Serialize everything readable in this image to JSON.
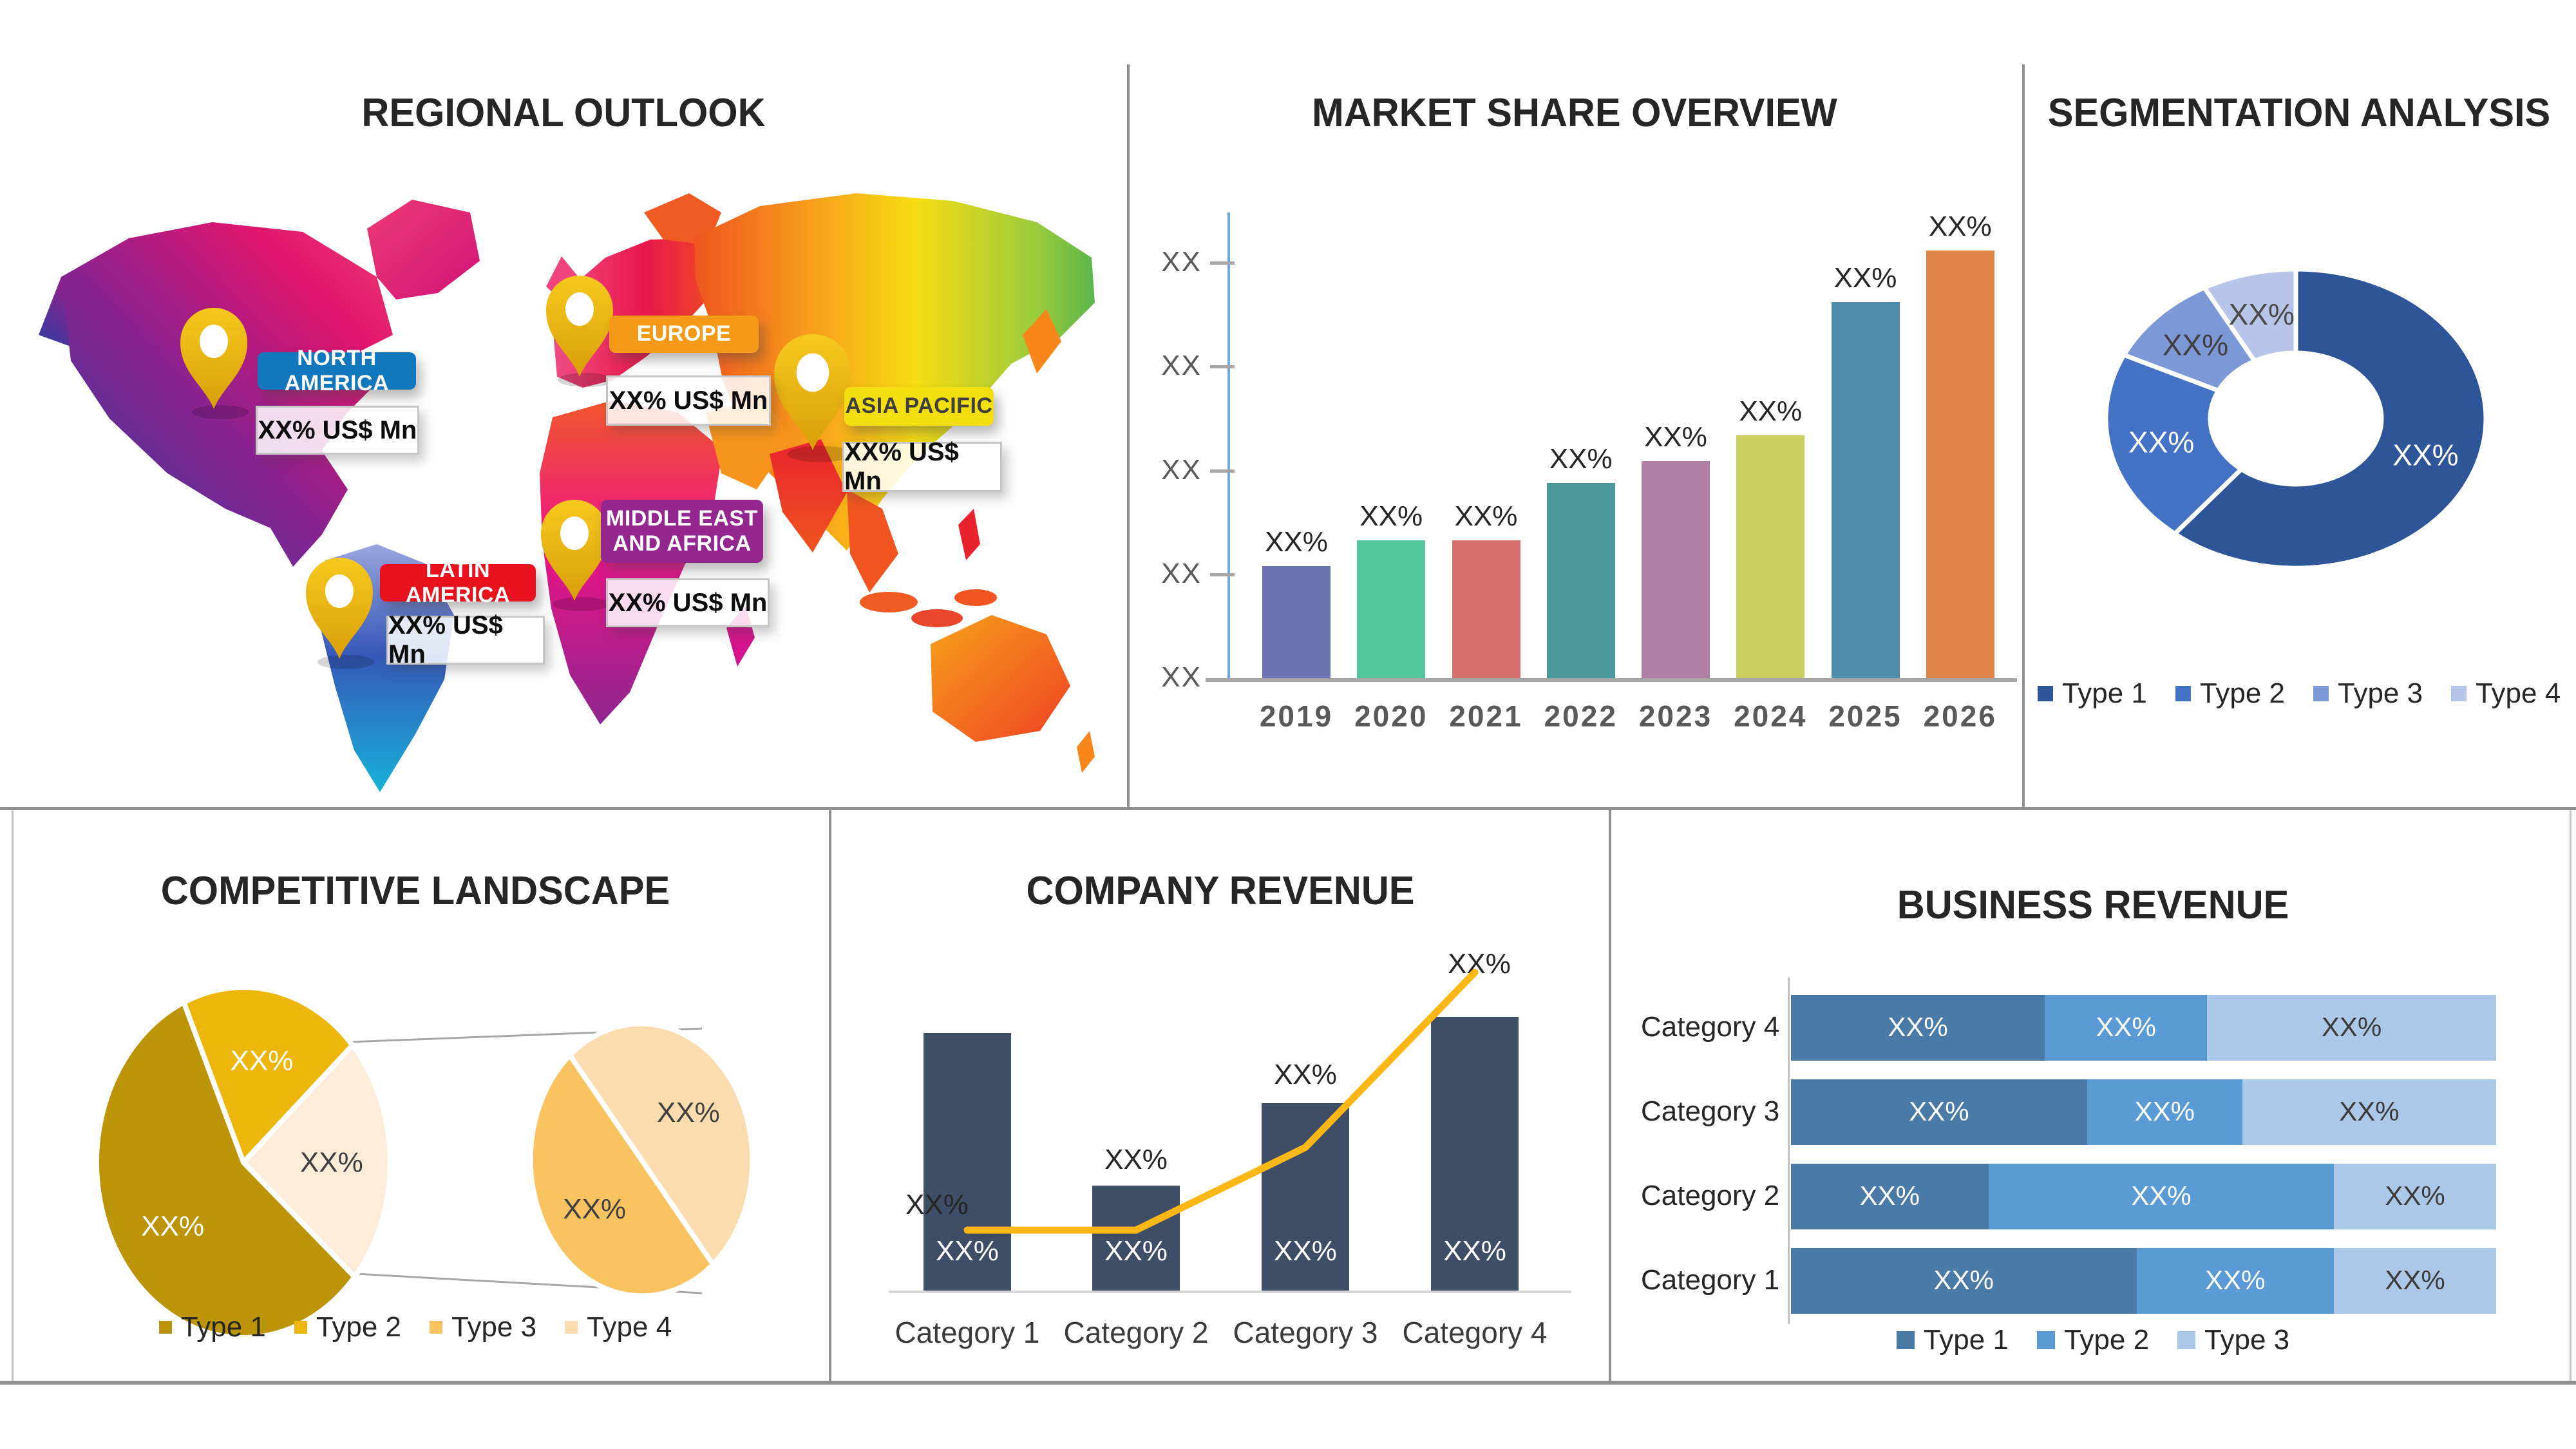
{
  "panels": {
    "regional": {
      "title": "REGIONAL OUTLOOK",
      "regions": [
        {
          "name": "NORTH AMERICA",
          "value": "XX% US$ Mn",
          "label_color": "#1278be",
          "text_color": "#ffffff"
        },
        {
          "name": "EUROPE",
          "value": "XX% US$ Mn",
          "label_color": "#f59a18",
          "text_color": "#ffffff"
        },
        {
          "name": "ASIA PACIFIC",
          "value": "XX% US$ Mn",
          "label_color": "#f3df10",
          "text_color": "#3f3f3f"
        },
        {
          "name": "MIDDLE EAST AND AFRICA",
          "value": "XX% US$ Mn",
          "label_color": "#93278f",
          "text_color": "#ffffff"
        },
        {
          "name": "LATIN AMERICA",
          "value": "XX% US$ Mn",
          "label_color": "#e8121f",
          "text_color": "#ffffff"
        }
      ]
    },
    "market_share": {
      "title": "MARKET SHARE OVERVIEW"
    },
    "segmentation": {
      "title": "SEGMENTATION ANALYSIS"
    },
    "competitive": {
      "title": "COMPETITIVE LANDSCAPE"
    },
    "company": {
      "title": "COMPANY REVENUE"
    },
    "business": {
      "title": "BUSINESS REVENUE"
    }
  },
  "chart_data": [
    {
      "id": "market_share_overview",
      "type": "bar",
      "title": "MARKET SHARE OVERVIEW",
      "categories": [
        "2019",
        "2020",
        "2021",
        "2022",
        "2023",
        "2024",
        "2025",
        "2026"
      ],
      "values": [
        1.08,
        1.33,
        1.33,
        1.88,
        2.09,
        2.34,
        3.62,
        4.12
      ],
      "value_note": "relative heights in y-axis tick units; printed data labels are masked",
      "bar_labels": [
        "XX%",
        "XX%",
        "XX%",
        "XX%",
        "XX%",
        "XX%",
        "XX%",
        "XX%"
      ],
      "y_tick_labels": [
        "XX",
        "XX",
        "XX",
        "XX",
        "XX"
      ],
      "ylim": [
        0,
        4.5
      ],
      "grid": false,
      "bar_colors": [
        "#6b74b0",
        "#55c79c",
        "#d76f6f",
        "#4a989c",
        "#b07fa6",
        "#c9d05f",
        "#4e8cab",
        "#e0854a"
      ],
      "axis_colors": {
        "y": "#6fa8dc",
        "x": "#a6a6a6"
      }
    },
    {
      "id": "segmentation_analysis",
      "type": "pie",
      "subtype": "donut",
      "title": "SEGMENTATION ANALYSIS",
      "start_angle_deg": -90,
      "slices": [
        {
          "name": "Type 1",
          "value": 61,
          "label": "XX%",
          "color": "#2e5597",
          "label_color": "#ffffff"
        },
        {
          "name": "Type 2",
          "value": 21,
          "label": "XX%",
          "color": "#4472c4",
          "label_color": "#ffffff"
        },
        {
          "name": "Type 3",
          "value": 10,
          "label": "XX%",
          "color": "#7d98d6",
          "label_color": "#404040"
        },
        {
          "name": "Type 4",
          "value": 8,
          "label": "XX%",
          "color": "#b6c5e8",
          "label_color": "#4a4a4a"
        }
      ],
      "legend": [
        "Type 1",
        "Type 2",
        "Type 3",
        "Type 4"
      ],
      "legend_position": "bottom"
    },
    {
      "id": "competitive_landscape",
      "type": "pie",
      "subtype": "pie-of-pie",
      "title": "COMPETITIVE LANDSCAPE",
      "main": {
        "start_angle_deg": -114,
        "slices": [
          {
            "name": "Type 2",
            "value": 20,
            "label": "XX%",
            "color": "#ecb70a",
            "label_color": "#ffffff"
          },
          {
            "name": "Other (Type 3 + Type 4)",
            "value": 23,
            "label": "XX%",
            "color": "#fdecd9",
            "label_color": "#404040"
          },
          {
            "name": "Type 1",
            "value": 57,
            "label": "XX%",
            "color": "#bc9407",
            "label_color": "#ffffff"
          }
        ]
      },
      "secondary": {
        "start_angle_deg": -130,
        "slices": [
          {
            "name": "Type 4",
            "value": 50,
            "label": "XX%",
            "color": "#fbdcae",
            "label_color": "#404040"
          },
          {
            "name": "Type 3",
            "value": 50,
            "label": "XX%",
            "color": "#f9c360",
            "label_color": "#404040"
          }
        ]
      },
      "legend": [
        {
          "name": "Type 1",
          "color": "#bc9407"
        },
        {
          "name": "Type 2",
          "color": "#ecb70a"
        },
        {
          "name": "Type 3",
          "color": "#f9c360"
        },
        {
          "name": "Type 4",
          "color": "#fbdcae"
        }
      ]
    },
    {
      "id": "company_revenue",
      "type": "bar",
      "subtype": "bar+line",
      "title": "COMPANY REVENUE",
      "categories": [
        "Category 1",
        "Category 2",
        "Category 3",
        "Category 4"
      ],
      "bar_values_pct_of_plot": [
        81,
        33,
        59,
        86
      ],
      "bar_inner_labels": [
        "XX%",
        "XX%",
        "XX%",
        "XX%"
      ],
      "line_values_pct_of_plot": [
        19,
        19,
        45,
        100
      ],
      "line_point_labels": [
        "XX%",
        "XX%",
        "XX%",
        "XX%"
      ],
      "bar_color": "#3d4e66",
      "line_color": "#fdb714"
    },
    {
      "id": "business_revenue",
      "type": "bar",
      "subtype": "stacked-horizontal",
      "title": "BUSINESS REVENUE",
      "categories": [
        "Category 4",
        "Category 3",
        "Category 2",
        "Category 1"
      ],
      "series": [
        {
          "name": "Type 1",
          "color": "#4a7ba6",
          "label_color": "#ffffff",
          "values": [
            36,
            42,
            28,
            49
          ]
        },
        {
          "name": "Type 2",
          "color": "#5b9bd5",
          "label_color": "#ffffff",
          "values": [
            23,
            22,
            49,
            28
          ]
        },
        {
          "name": "Type 3",
          "color": "#abc8e8",
          "label_color": "#3b3b3b",
          "values": [
            41,
            36,
            23,
            23
          ]
        }
      ],
      "segment_labels": [
        [
          "XX%",
          "XX%",
          "XX%"
        ],
        [
          "XX%",
          "XX%",
          "XX%"
        ],
        [
          "XX%",
          "XX%",
          "XX%"
        ],
        [
          "XX%",
          "XX%",
          "XX%"
        ]
      ],
      "legend": [
        "Type 1",
        "Type 2",
        "Type 3"
      ]
    }
  ]
}
